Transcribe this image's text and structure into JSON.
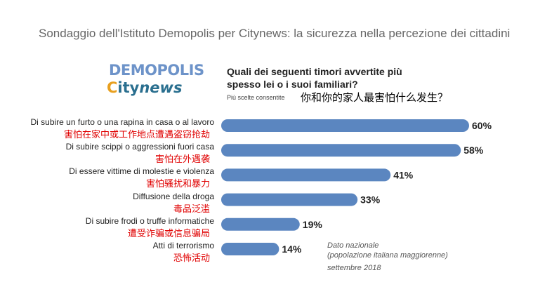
{
  "title": "Sondaggio dell'Istituto Demopolis per Citynews: la sicurezza nella percezione dei cittadini",
  "logos": {
    "demopolis": "DEMOPOLIS",
    "citynews_c": "C",
    "citynews_city": "ity",
    "citynews_news": "news"
  },
  "question": {
    "text": "Quali dei seguenti timori avvertite più spesso lei o i suoi familiari?",
    "subtitle": "Più scelte consentite",
    "translation": "你和你的家人最害怕什么发生？"
  },
  "note": {
    "line1": "Dato nazionale",
    "line2": "(popolazione italiana maggiorenne)",
    "date": "settembre 2018"
  },
  "chart_data": {
    "type": "bar",
    "orientation": "horizontal",
    "categories": [
      "Di subire un furto o una rapina in casa o al lavoro",
      "Di subire scippi o aggressioni fuori casa",
      "Di essere vittime di molestie e violenza",
      "Diffusione della droga",
      "Di subire frodi o truffe informatiche",
      "Atti di terrorismo"
    ],
    "translations": [
      "害怕在家中或工作地点遭遇盗窃抢劫",
      "害怕在外遇袭",
      "害怕骚扰和暴力",
      "毒品泛滥",
      "遭受诈骗或信息骗局",
      "恐怖活动"
    ],
    "values": [
      60,
      58,
      41,
      33,
      19,
      14
    ],
    "value_labels": [
      "60%",
      "58%",
      "41%",
      "33%",
      "19%",
      "14%"
    ],
    "unit": "%",
    "xlim": [
      0,
      60
    ],
    "color": "#5b86c0"
  }
}
